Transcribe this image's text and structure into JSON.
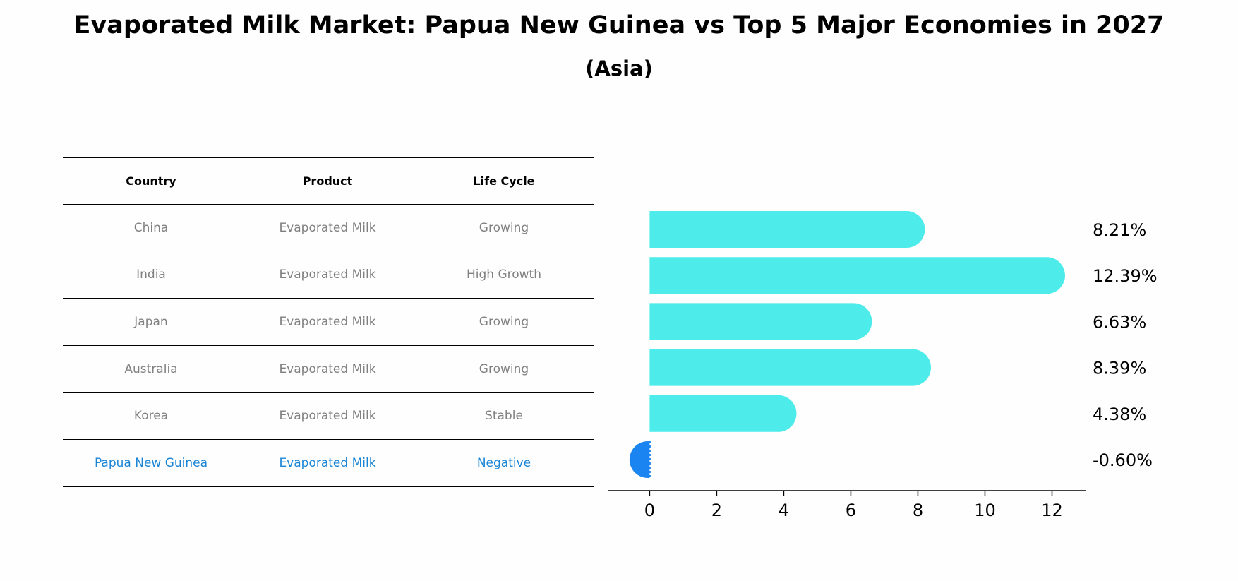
{
  "title": "Evaporated Milk Market: Papua New Guinea vs Top 5 Major Economies in 2027",
  "subtitle": "(Asia)",
  "table": {
    "headers": [
      "Country",
      "Product",
      "Life Cycle"
    ],
    "rows": [
      [
        "China",
        "Evaporated Milk",
        "Growing"
      ],
      [
        "India",
        "Evaporated Milk",
        "High Growth"
      ],
      [
        "Japan",
        "Evaporated Milk",
        "Growing"
      ],
      [
        "Australia",
        "Evaporated Milk",
        "Growing"
      ],
      [
        "Korea",
        "Evaporated Milk",
        "Stable"
      ],
      [
        "Papua New Guinea",
        "Evaporated Milk",
        "Negative"
      ]
    ]
  },
  "colors": {
    "bar": "#4deceb",
    "highlight_bar": "#1a85f0",
    "highlight_text": "#1a85d6"
  },
  "chart_data": {
    "type": "bar",
    "orientation": "horizontal",
    "categories": [
      "China",
      "India",
      "Japan",
      "Australia",
      "Korea",
      "Papua New Guinea"
    ],
    "values": [
      8.21,
      12.39,
      6.63,
      8.39,
      4.38,
      -0.6
    ],
    "labels": [
      "8.21%",
      "12.39%",
      "6.63%",
      "8.39%",
      "4.38%",
      "-0.60%"
    ],
    "highlight": "Papua New Guinea",
    "xlim": [
      -1.25,
      13
    ],
    "xticks": [
      0,
      2,
      4,
      6,
      8,
      10,
      12
    ],
    "title": "Evaporated Milk Market: Papua New Guinea vs Top 5 Major Economies in 2027",
    "xlabel": "",
    "ylabel": ""
  }
}
